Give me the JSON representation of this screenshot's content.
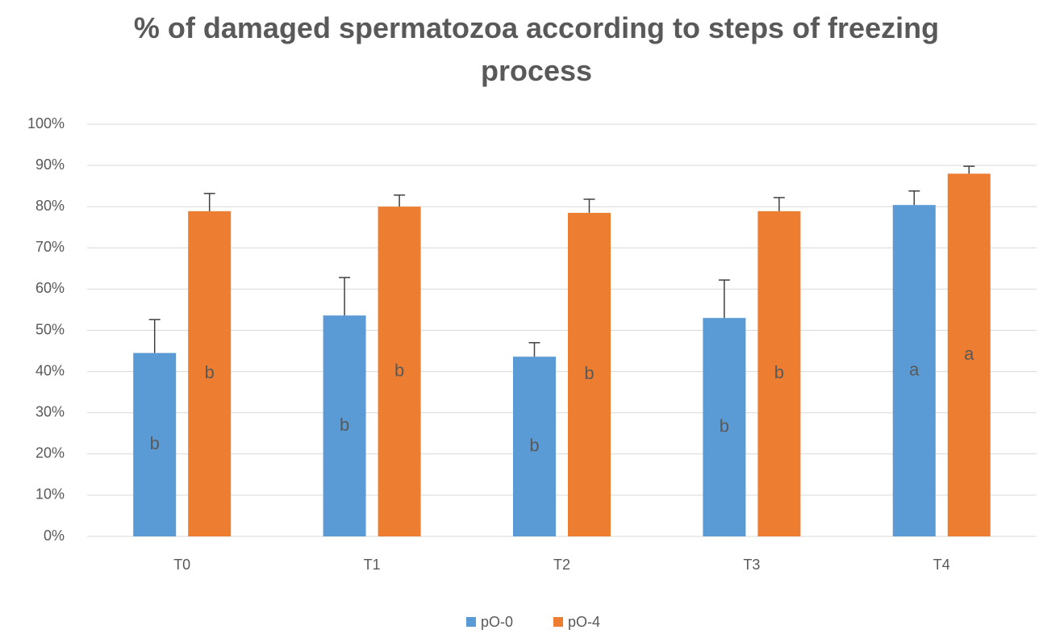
{
  "chart_data": {
    "type": "bar",
    "title": "% of damaged spermatozoa according to steps of freezing process",
    "categories": [
      "T0",
      "T1",
      "T2",
      "T3",
      "T4"
    ],
    "series": [
      {
        "name": "pO-0",
        "color": "#5b9bd5",
        "values": [
          44.5,
          53.6,
          43.6,
          53,
          80.4
        ],
        "errors": [
          8.1,
          9.2,
          3.4,
          9.2,
          3.4
        ],
        "letters": [
          "b",
          "b",
          "b",
          "b",
          "a"
        ]
      },
      {
        "name": "pO-4",
        "color": "#ed7d31",
        "values": [
          78.9,
          80,
          78.5,
          78.9,
          88
        ],
        "errors": [
          4.3,
          2.8,
          3.3,
          3.3,
          1.8
        ],
        "letters": [
          "b",
          "b",
          "b",
          "b",
          "a"
        ]
      }
    ],
    "ylim": [
      0,
      100
    ],
    "yticks": [
      {
        "value": 0,
        "label": "0%"
      },
      {
        "value": 10,
        "label": "10%"
      },
      {
        "value": 20,
        "label": "20%"
      },
      {
        "value": 30,
        "label": "30%"
      },
      {
        "value": 40,
        "label": "40%"
      },
      {
        "value": 50,
        "label": "50%"
      },
      {
        "value": 60,
        "label": "60%"
      },
      {
        "value": 70,
        "label": "70%"
      },
      {
        "value": 80,
        "label": "80%"
      },
      {
        "value": 90,
        "label": "90%"
      },
      {
        "value": 100,
        "label": "100%"
      }
    ],
    "grid": true,
    "legend": "bottom"
  }
}
